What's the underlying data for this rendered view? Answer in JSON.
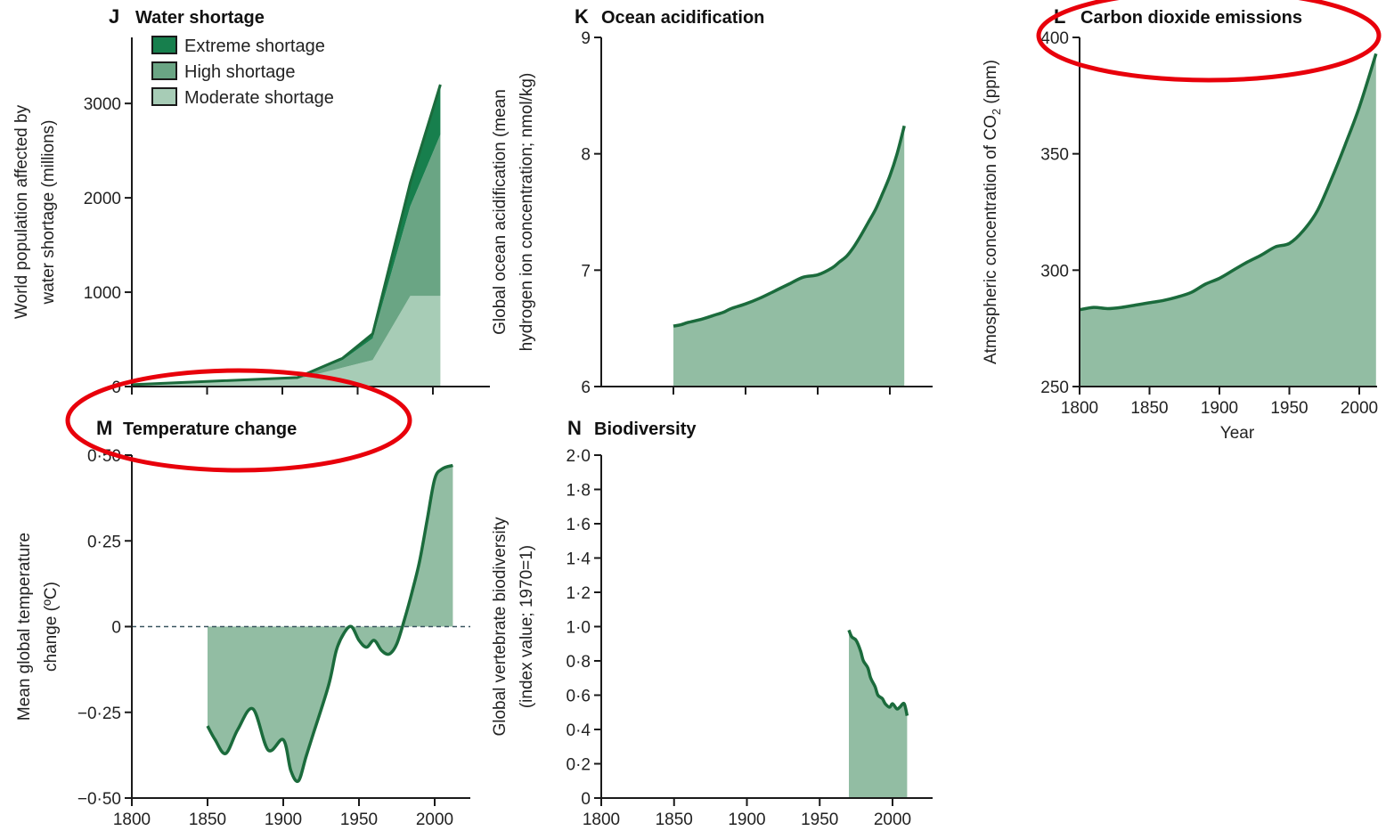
{
  "colors": {
    "fill": "#92bda3",
    "line": "#1b6b3c",
    "extreme": "#177f4d",
    "high": "#6aa584",
    "moderate": "#a7ccb6",
    "highlight": "#e8000b"
  },
  "chart_data": [
    {
      "id": "J",
      "type": "area",
      "title": "Water shortage",
      "ylabel": [
        "World population affected by",
        "water shortage (millions)"
      ],
      "xlim": [
        1800,
        2020
      ],
      "ylim": [
        0,
        3700
      ],
      "yticks": [
        0,
        1000,
        2000,
        3000
      ],
      "ytick_labels": [
        "0",
        "1000",
        "2000",
        "3000"
      ],
      "xticks": [
        1800,
        1850,
        1900,
        1950,
        2000
      ],
      "x": [
        1800,
        1910,
        1940,
        1960,
        1985,
        2005
      ],
      "series": [
        {
          "name": "Moderate shortage",
          "values": [
            20,
            80,
            200,
            280,
            960,
            960
          ]
        },
        {
          "name": "High shortage",
          "values": [
            0,
            10,
            80,
            230,
            950,
            1710
          ]
        },
        {
          "name": "Extreme shortage",
          "values": [
            0,
            5,
            20,
            50,
            250,
            530
          ]
        }
      ]
    },
    {
      "id": "K",
      "type": "area",
      "title": "Ocean acidification",
      "ylabel": [
        "Global ocean acidification (mean",
        "hydrogen ion concentration; nmol/kg)"
      ],
      "xlim": [
        1800,
        2030
      ],
      "ylim": [
        6,
        9
      ],
      "yticks": [
        6,
        7,
        8,
        9
      ],
      "ytick_labels": [
        "6",
        "7",
        "8",
        "9"
      ],
      "xticks": [
        1850,
        1900,
        1950,
        2000
      ],
      "x": [
        1850,
        1855,
        1860,
        1870,
        1880,
        1885,
        1890,
        1900,
        1910,
        1920,
        1930,
        1940,
        1950,
        1960,
        1965,
        1970,
        1975,
        1980,
        1985,
        1990,
        1995,
        2000,
        2005,
        2010
      ],
      "values": [
        6.52,
        6.53,
        6.55,
        6.58,
        6.62,
        6.64,
        6.67,
        6.71,
        6.76,
        6.82,
        6.88,
        6.94,
        6.96,
        7.02,
        7.07,
        7.12,
        7.2,
        7.3,
        7.41,
        7.52,
        7.66,
        7.81,
        8.0,
        8.24
      ]
    },
    {
      "id": "L",
      "type": "area",
      "title": "Carbon dioxide emissions",
      "ylabel": [
        "Atmospheric concentration of CO",
        "2",
        " (ppm)"
      ],
      "xlabel": "Year",
      "xlim": [
        1800,
        2020
      ],
      "ylim": [
        250,
        400
      ],
      "yticks": [
        250,
        300,
        350,
        400
      ],
      "ytick_labels": [
        "250",
        "300",
        "350",
        "400"
      ],
      "xticks": [
        1800,
        1850,
        1900,
        1950,
        2000
      ],
      "xtick_labels": [
        "1800",
        "1850",
        "1900",
        "1950",
        "2000"
      ],
      "x": [
        1800,
        1810,
        1820,
        1830,
        1840,
        1850,
        1860,
        1870,
        1880,
        1890,
        1900,
        1910,
        1920,
        1930,
        1940,
        1950,
        1960,
        1970,
        1980,
        1990,
        2000,
        2012
      ],
      "values": [
        283,
        284,
        283.5,
        284,
        285,
        286,
        287,
        288.5,
        290.5,
        294,
        296.5,
        300,
        303.5,
        306.5,
        310,
        311.5,
        317,
        325.5,
        339,
        354,
        370,
        393
      ]
    },
    {
      "id": "M",
      "type": "area",
      "title": "Temperature change",
      "ylabel": [
        "Mean global temperature",
        "change (ºC)"
      ],
      "xlim": [
        1800,
        2030
      ],
      "ylim": [
        -0.5,
        0.5
      ],
      "yticks": [
        -0.5,
        -0.25,
        0,
        0.25,
        0.5
      ],
      "ytick_labels": [
        "−0·50",
        "−0·25",
        "0",
        "0·25",
        "0·50"
      ],
      "xticks": [
        1800,
        1850,
        1900,
        1950,
        2000
      ],
      "xtick_labels": [
        "1800",
        "1850",
        "1900",
        "1950",
        "2000"
      ],
      "x": [
        1850,
        1855,
        1862,
        1870,
        1880,
        1890,
        1900,
        1905,
        1910,
        1915,
        1920,
        1930,
        1935,
        1940,
        1945,
        1950,
        1955,
        1960,
        1965,
        1970,
        1975,
        1980,
        1985,
        1990,
        1995,
        2000,
        2005,
        2012
      ],
      "values": [
        -0.29,
        -0.33,
        -0.37,
        -0.3,
        -0.24,
        -0.36,
        -0.33,
        -0.42,
        -0.45,
        -0.38,
        -0.31,
        -0.17,
        -0.07,
        -0.02,
        0,
        -0.04,
        -0.06,
        -0.04,
        -0.07,
        -0.08,
        -0.05,
        0.02,
        0.1,
        0.19,
        0.31,
        0.43,
        0.46,
        0.47
      ]
    },
    {
      "id": "N",
      "type": "area",
      "title": "Biodiversity",
      "ylabel": [
        "Global vertebrate biodiversity",
        "(index value; 1970=1)"
      ],
      "xlim": [
        1800,
        2030
      ],
      "ylim": [
        0,
        2
      ],
      "yticks": [
        0,
        0.2,
        0.4,
        0.6,
        0.8,
        1.0,
        1.2,
        1.4,
        1.6,
        1.8,
        2.0
      ],
      "ytick_labels": [
        "0",
        "0·2",
        "0·4",
        "0·6",
        "0·8",
        "1·0",
        "1·2",
        "1·4",
        "1·6",
        "1·8",
        "2·0"
      ],
      "xticks": [
        1800,
        1850,
        1900,
        1950,
        2000
      ],
      "xtick_labels": [
        "1800",
        "1850",
        "1900",
        "1950",
        "2000"
      ],
      "x": [
        1970,
        1972,
        1975,
        1978,
        1980,
        1983,
        1985,
        1988,
        1990,
        1993,
        1995,
        1998,
        2000,
        2003,
        2005,
        2008,
        2010
      ],
      "values": [
        0.98,
        0.94,
        0.92,
        0.86,
        0.8,
        0.76,
        0.7,
        0.65,
        0.6,
        0.58,
        0.55,
        0.53,
        0.55,
        0.52,
        0.53,
        0.55,
        0.48
      ]
    }
  ]
}
